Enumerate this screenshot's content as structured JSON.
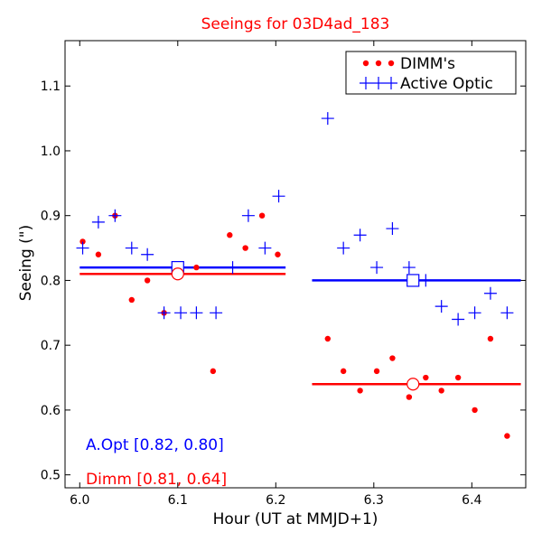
{
  "chart_data": {
    "type": "scatter",
    "title": "Seeings for 03D4ad_183",
    "xlabel": "Hour (UT at MMJD+1)",
    "ylabel": "Seeing (\")",
    "xlim": [
      5.985,
      6.455
    ],
    "ylim": [
      0.48,
      1.17
    ],
    "xticks": [
      6.0,
      6.1,
      6.2,
      6.3,
      6.4
    ],
    "xtick_labels": [
      "6.0",
      "6.1",
      "6.2",
      "6.3",
      "6.4"
    ],
    "yticks": [
      0.5,
      0.6,
      0.7,
      0.8,
      0.9,
      1.0,
      1.1
    ],
    "ytick_labels": [
      "0.5",
      "0.6",
      "0.7",
      "0.8",
      "0.9",
      "1.0",
      "1.1"
    ],
    "colors": {
      "dimm": "#ff0000",
      "aopt": "#0000ff",
      "title": "#ff0000"
    },
    "legend": {
      "position": "top-right",
      "entries": [
        {
          "label": "DIMM's",
          "series": "dimm"
        },
        {
          "label": "Active Optic",
          "series": "aopt"
        }
      ]
    },
    "series": [
      {
        "name": "DIMM's",
        "key": "dimm",
        "marker": "dot",
        "points": [
          [
            6.003,
            0.86
          ],
          [
            6.019,
            0.84
          ],
          [
            6.036,
            0.9
          ],
          [
            6.053,
            0.77
          ],
          [
            6.069,
            0.8
          ],
          [
            6.086,
            0.75
          ],
          [
            6.103,
            0.81
          ],
          [
            6.119,
            0.82
          ],
          [
            6.136,
            0.66
          ],
          [
            6.153,
            0.87
          ],
          [
            6.169,
            0.85
          ],
          [
            6.186,
            0.9
          ],
          [
            6.202,
            0.84
          ],
          [
            6.253,
            0.71
          ],
          [
            6.269,
            0.66
          ],
          [
            6.286,
            0.63
          ],
          [
            6.303,
            0.66
          ],
          [
            6.319,
            0.68
          ],
          [
            6.336,
            0.62
          ],
          [
            6.353,
            0.65
          ],
          [
            6.369,
            0.63
          ],
          [
            6.386,
            0.65
          ],
          [
            6.403,
            0.6
          ],
          [
            6.419,
            0.71
          ],
          [
            6.436,
            0.56
          ]
        ]
      },
      {
        "name": "Active Optic",
        "key": "aopt",
        "marker": "plus",
        "points": [
          [
            6.003,
            0.85
          ],
          [
            6.019,
            0.89
          ],
          [
            6.036,
            0.9
          ],
          [
            6.053,
            0.85
          ],
          [
            6.069,
            0.84
          ],
          [
            6.086,
            0.75
          ],
          [
            6.103,
            0.75
          ],
          [
            6.119,
            0.75
          ],
          [
            6.139,
            0.75
          ],
          [
            6.156,
            0.82
          ],
          [
            6.172,
            0.9
          ],
          [
            6.189,
            0.85
          ],
          [
            6.203,
            0.93
          ],
          [
            6.253,
            1.05
          ],
          [
            6.269,
            0.85
          ],
          [
            6.286,
            0.87
          ],
          [
            6.303,
            0.82
          ],
          [
            6.319,
            0.88
          ],
          [
            6.336,
            0.82
          ],
          [
            6.353,
            0.8
          ],
          [
            6.369,
            0.76
          ],
          [
            6.386,
            0.74
          ],
          [
            6.403,
            0.75
          ],
          [
            6.419,
            0.78
          ],
          [
            6.436,
            0.75
          ]
        ]
      }
    ],
    "mean_lines": [
      {
        "series": "aopt",
        "x_start": 6.0,
        "x_end": 6.21,
        "y": 0.82
      },
      {
        "series": "dimm",
        "x_start": 6.0,
        "x_end": 6.21,
        "y": 0.81
      },
      {
        "series": "aopt",
        "x_start": 6.237,
        "x_end": 6.45,
        "y": 0.8
      },
      {
        "series": "dimm",
        "x_start": 6.237,
        "x_end": 6.45,
        "y": 0.64
      }
    ],
    "mean_markers": [
      {
        "series": "aopt",
        "shape": "square",
        "x": 6.1,
        "y": 0.82
      },
      {
        "series": "dimm",
        "shape": "circle",
        "x": 6.1,
        "y": 0.81
      },
      {
        "series": "aopt",
        "shape": "square",
        "x": 6.34,
        "y": 0.8
      },
      {
        "series": "dimm",
        "shape": "circle",
        "x": 6.34,
        "y": 0.64
      }
    ],
    "annotations": [
      {
        "series": "aopt",
        "text": "A.Opt [0.82, 0.80]"
      },
      {
        "series": "dimm",
        "text": "Dimm [0.81, 0.64]"
      }
    ]
  }
}
